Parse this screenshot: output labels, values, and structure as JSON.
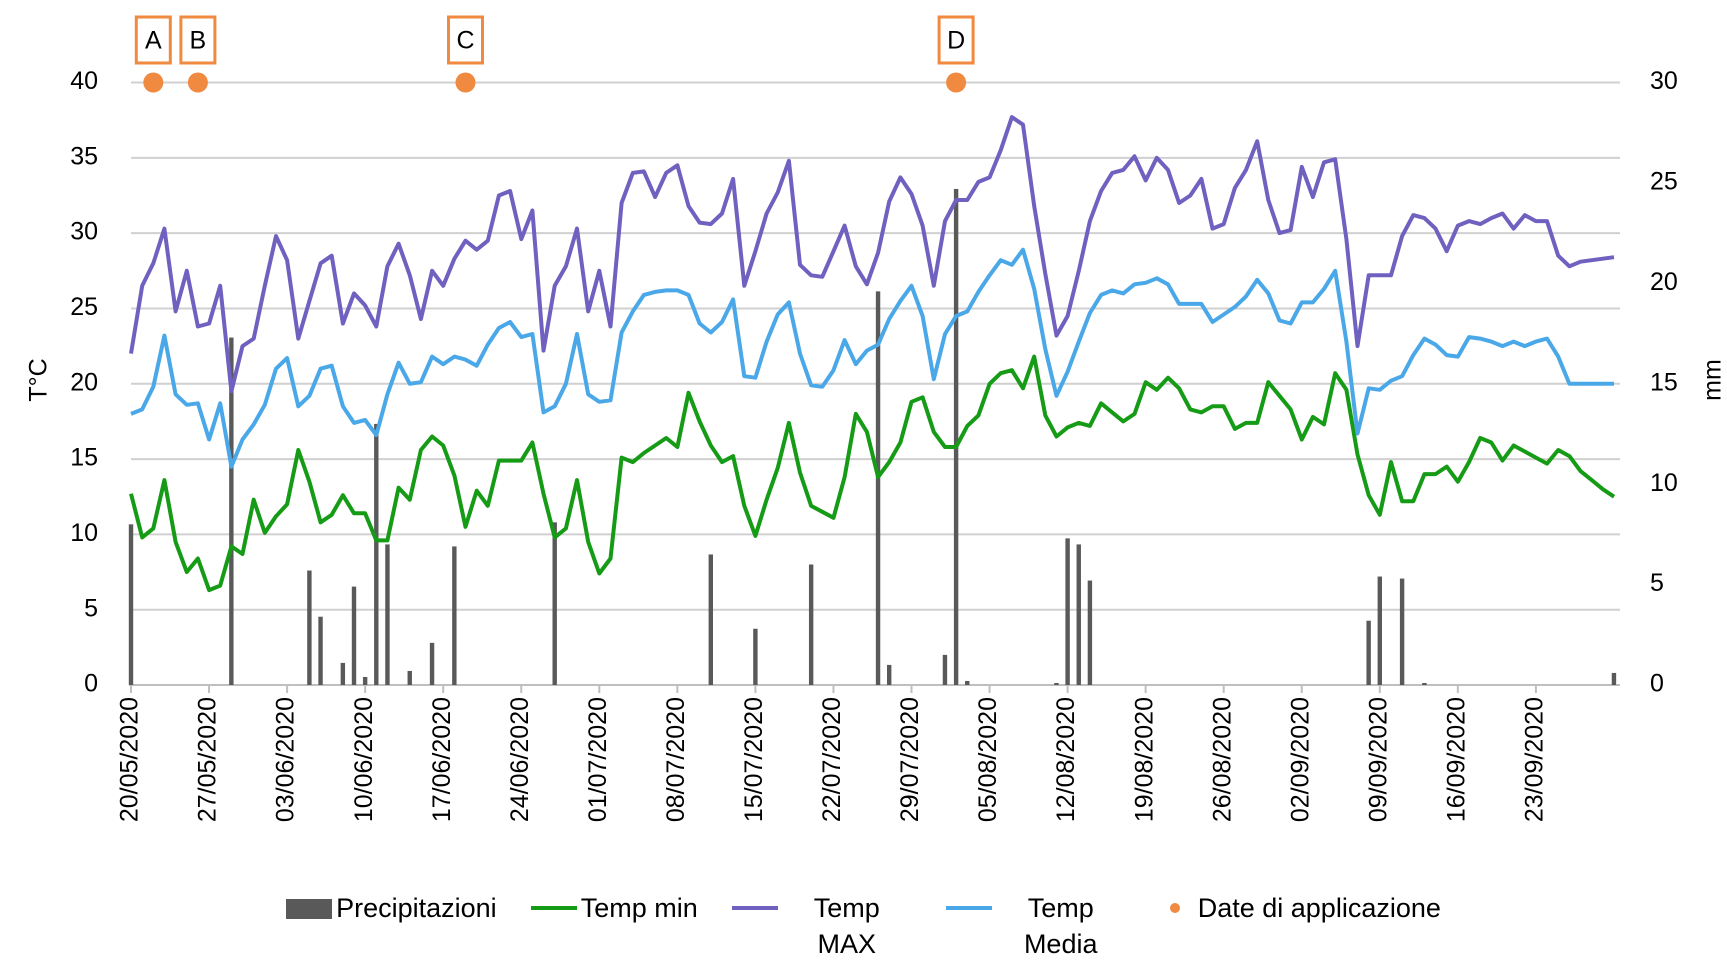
{
  "chart_data": {
    "type": "line",
    "y_label": "T°C",
    "y2_label": "mm",
    "categories": [
      "20/05/2020",
      null,
      null,
      null,
      null,
      null,
      null,
      "27/05/2020",
      null,
      null,
      null,
      null,
      null,
      null,
      "03/06/2020",
      null,
      null,
      null,
      null,
      null,
      null,
      "10/06/2020",
      null,
      null,
      null,
      null,
      null,
      null,
      "17/06/2020",
      null,
      null,
      null,
      null,
      null,
      null,
      "24/06/2020",
      null,
      null,
      null,
      null,
      null,
      null,
      "01/07/2020",
      null,
      null,
      null,
      null,
      null,
      null,
      "08/07/2020",
      null,
      null,
      null,
      null,
      null,
      null,
      "15/07/2020",
      null,
      null,
      null,
      null,
      null,
      null,
      "22/07/2020",
      null,
      null,
      null,
      null,
      null,
      null,
      "29/07/2020",
      null,
      null,
      null,
      null,
      null,
      null,
      "05/08/2020",
      null,
      null,
      null,
      null,
      null,
      null,
      "12/08/2020",
      null,
      null,
      null,
      null,
      null,
      null,
      "19/08/2020",
      null,
      null,
      null,
      null,
      null,
      null,
      "26/08/2020",
      null,
      null,
      null,
      null,
      null,
      null,
      "02/09/2020",
      null,
      null,
      null,
      null,
      null,
      null,
      "09/09/2020",
      null,
      null,
      null,
      null,
      null,
      null,
      "16/09/2020",
      null,
      null,
      null,
      null,
      null,
      null,
      "23/09/2020",
      null,
      null,
      null,
      null,
      null,
      null,
      null
    ],
    "series": [
      {
        "name": "Precipitazioni",
        "type": "bar",
        "axis": "y2",
        "color": "#595959",
        "values": [
          8,
          0,
          0,
          0,
          0,
          0,
          0,
          0,
          0,
          17.3,
          0,
          0,
          0,
          0,
          0,
          0,
          5.7,
          3.4,
          0,
          1.1,
          4.9,
          0.4,
          13,
          7,
          0,
          0.7,
          0,
          2.1,
          0,
          6.9,
          0,
          0,
          0,
          0,
          0,
          0,
          0,
          0,
          8.1,
          0,
          0,
          0,
          0,
          0,
          0,
          0,
          0,
          0,
          0,
          0,
          0,
          0,
          6.5,
          0,
          0,
          0,
          2.8,
          0,
          0,
          0,
          0,
          6,
          0,
          0,
          0,
          0,
          0,
          19.6,
          1,
          0,
          0,
          0,
          0,
          1.5,
          24.7,
          0.2,
          0,
          0,
          0,
          0,
          0,
          0,
          0,
          0.1,
          7.3,
          7,
          5.2,
          0,
          0,
          0,
          0,
          0,
          0,
          0,
          0,
          0,
          0,
          0,
          0,
          0,
          0,
          0,
          0,
          0,
          0,
          0,
          0,
          0,
          0,
          0,
          0,
          3.2,
          5.4,
          0,
          5.3,
          0,
          0.1,
          0,
          0,
          0,
          0,
          0,
          0,
          0,
          0,
          0,
          0,
          0,
          0,
          0,
          0,
          0,
          0,
          0.6
        ]
      },
      {
        "name": "Temp min",
        "type": "line",
        "color": "#169b16",
        "values": [
          12.7,
          9.8,
          10.4,
          13.6,
          9.5,
          7.5,
          8.4,
          6.3,
          6.6,
          9.2,
          8.7,
          12.3,
          10.1,
          11.2,
          12,
          15.6,
          13.5,
          10.8,
          11.3,
          12.6,
          11.4,
          11.4,
          9.6,
          9.6,
          13.1,
          12.3,
          15.6,
          16.5,
          15.9,
          13.9,
          10.5,
          12.9,
          11.9,
          14.9,
          14.9,
          14.9,
          16.1,
          12.7,
          9.8,
          10.4,
          13.6,
          9.5,
          7.4,
          8.4,
          15.1,
          14.8,
          15.4,
          15.9,
          16.4,
          15.8,
          19.4,
          17.5,
          15.9,
          14.8,
          15.2,
          11.9,
          9.9,
          12.3,
          14.4,
          17.4,
          14.1,
          11.9,
          11.5,
          11.1,
          13.8,
          18,
          16.8,
          13.8,
          14.8,
          16.1,
          18.8,
          19.1,
          16.8,
          15.8,
          15.8,
          17.2,
          17.9,
          20,
          20.7,
          20.9,
          19.7,
          21.8,
          17.9,
          16.5,
          17.1,
          17.4,
          17.2,
          18.7,
          18.1,
          17.5,
          18,
          20.1,
          19.6,
          20.4,
          19.7,
          18.3,
          18.1,
          18.5,
          18.5,
          17,
          17.4,
          17.4,
          20.1,
          19.2,
          18.3,
          16.3,
          17.8,
          17.3,
          20.7,
          19.6,
          15.3,
          12.6,
          11.3,
          14.8,
          12.2,
          12.2,
          14,
          14,
          14.5,
          13.5,
          14.8,
          16.4,
          16.1,
          14.9,
          15.9,
          15.5,
          15.1,
          14.7,
          15.6,
          15.2,
          14.2,
          13.6,
          13,
          12.5
        ]
      },
      {
        "name": "Temp MAX",
        "type": "line",
        "color": "#7060c0",
        "values": [
          22,
          26.5,
          28,
          30.3,
          24.8,
          27.5,
          23.8,
          24,
          26.5,
          19.5,
          22.5,
          23,
          26.5,
          29.8,
          28.2,
          23,
          25.5,
          28,
          28.5,
          24,
          26,
          25.2,
          23.8,
          27.8,
          29.3,
          27.2,
          24.3,
          27.5,
          26.5,
          28.3,
          29.5,
          28.9,
          29.5,
          32.5,
          32.8,
          29.6,
          31.5,
          22.2,
          26.5,
          27.8,
          30.3,
          24.8,
          27.5,
          23.8,
          32,
          34,
          34.1,
          32.4,
          34,
          34.5,
          31.8,
          30.7,
          30.6,
          31.3,
          33.6,
          26.5,
          28.8,
          31.3,
          32.7,
          34.8,
          27.9,
          27.2,
          27.1,
          28.8,
          30.5,
          27.8,
          26.6,
          28.7,
          32.1,
          33.7,
          32.6,
          30.5,
          26.5,
          30.8,
          32.2,
          32.2,
          33.4,
          33.7,
          35.5,
          37.7,
          37.2,
          31.8,
          27.3,
          23.2,
          24.5,
          27.5,
          30.8,
          32.8,
          34,
          34.2,
          35.1,
          33.5,
          35,
          34.2,
          32,
          32.5,
          33.6,
          30.3,
          30.6,
          33,
          34.2,
          36.1,
          32.2,
          30,
          30.2,
          34.4,
          32.4,
          34.7,
          34.9,
          29.6,
          22.5,
          27.2,
          27.2,
          27.2,
          29.8,
          31.2,
          31,
          30.3,
          28.8,
          30.5,
          30.8,
          30.6,
          31,
          31.3,
          30.3,
          31.2,
          30.8,
          30.8,
          28.5,
          27.8,
          28.1,
          28.2,
          28.3,
          28.4
        ]
      },
      {
        "name": "Temp Media",
        "type": "line",
        "color": "#4aa8e8",
        "values": [
          18,
          18.3,
          19.8,
          23.2,
          19.3,
          18.6,
          18.7,
          16.3,
          18.7,
          14.5,
          16.3,
          17.3,
          18.6,
          21,
          21.7,
          18.5,
          19.2,
          21,
          21.2,
          18.5,
          17.4,
          17.6,
          16.6,
          19.3,
          21.4,
          20,
          20.1,
          21.8,
          21.3,
          21.8,
          21.6,
          21.2,
          22.6,
          23.7,
          24.1,
          23.1,
          23.3,
          18.1,
          18.5,
          20,
          23.3,
          19.3,
          18.8,
          18.9,
          23.4,
          24.8,
          25.9,
          26.1,
          26.2,
          26.2,
          25.9,
          24,
          23.4,
          24.1,
          25.6,
          20.5,
          20.4,
          22.8,
          24.6,
          25.4,
          22,
          19.9,
          19.8,
          20.9,
          22.9,
          21.3,
          22.2,
          22.6,
          24.3,
          25.5,
          26.5,
          24.5,
          20.3,
          23.3,
          24.5,
          24.8,
          26.1,
          27.2,
          28.2,
          27.9,
          28.9,
          26.3,
          22.3,
          19.2,
          20.8,
          22.8,
          24.7,
          25.9,
          26.2,
          26,
          26.6,
          26.7,
          27,
          26.6,
          25.3,
          25.3,
          25.3,
          24.1,
          24.6,
          25.1,
          25.8,
          26.9,
          26,
          24.2,
          24,
          25.4,
          25.4,
          26.3,
          27.5,
          22.8,
          16.7,
          19.7,
          19.6,
          20.2,
          20.5,
          21.9,
          23,
          22.6,
          21.9,
          21.8,
          23.1,
          23,
          22.8,
          22.5,
          22.8,
          22.5,
          22.8,
          23,
          21.8,
          20,
          20,
          20,
          20,
          20
        ]
      },
      {
        "name": "Date di applicazione",
        "type": "scatter",
        "color": "#f08a40",
        "values": [
          null,
          null,
          40,
          null,
          null,
          null,
          40,
          null,
          null,
          null,
          null,
          null,
          null,
          null,
          null,
          null,
          null,
          null,
          null,
          null,
          null,
          null,
          null,
          null,
          null,
          null,
          null,
          null,
          null,
          null,
          40,
          null,
          null,
          null,
          null,
          null,
          null,
          null,
          null,
          null,
          null,
          null,
          null,
          null,
          null,
          null,
          null,
          null,
          null,
          null,
          null,
          null,
          null,
          null,
          null,
          null,
          null,
          null,
          null,
          null,
          null,
          null,
          null,
          null,
          null,
          null,
          null,
          null,
          null,
          null,
          null,
          null,
          null,
          null,
          40,
          null,
          null,
          null,
          null,
          null,
          null,
          null,
          null,
          null,
          null,
          null,
          null,
          null,
          null,
          null,
          null,
          null,
          null,
          null,
          null,
          null,
          null,
          null,
          null,
          null,
          null,
          null,
          null,
          null,
          null,
          null,
          null,
          null,
          null,
          null,
          null,
          null,
          null,
          null,
          null,
          null,
          null,
          null,
          null,
          null,
          null,
          null,
          null,
          null,
          null,
          null,
          null,
          null,
          null,
          null,
          null,
          null,
          null,
          null
        ],
        "labels": [
          null,
          null,
          "A",
          null,
          null,
          null,
          "B",
          null,
          null,
          null,
          null,
          null,
          null,
          null,
          null,
          null,
          null,
          null,
          null,
          null,
          null,
          null,
          null,
          null,
          null,
          null,
          null,
          null,
          null,
          null,
          "C",
          null,
          null,
          null,
          null,
          null,
          null,
          null,
          null,
          null,
          null,
          null,
          null,
          null,
          null,
          null,
          null,
          null,
          null,
          null,
          null,
          null,
          null,
          null,
          null,
          null,
          null,
          null,
          null,
          null,
          null,
          null,
          null,
          null,
          null,
          null,
          null,
          null,
          null,
          null,
          null,
          null,
          null,
          null,
          "D",
          null,
          null,
          null,
          null,
          null,
          null,
          null,
          null,
          null,
          null,
          null,
          null,
          null,
          null,
          null,
          null,
          null,
          null,
          null,
          null,
          null,
          null,
          null,
          null,
          null,
          null,
          null,
          null,
          null,
          null,
          null,
          null,
          null,
          null,
          null,
          null,
          null,
          null,
          null,
          null,
          null,
          null,
          null,
          null,
          null,
          null,
          null,
          null,
          null,
          null,
          null,
          null,
          null,
          null,
          null,
          null,
          null,
          null,
          null
        ]
      }
    ],
    "ylim": [
      0,
      40
    ],
    "yticks": [
      0,
      5,
      10,
      15,
      20,
      25,
      30,
      35,
      40
    ],
    "y2lim": [
      0,
      30
    ],
    "y2ticks": [
      0,
      5,
      10,
      15,
      20,
      25,
      30
    ],
    "grid": true
  }
}
